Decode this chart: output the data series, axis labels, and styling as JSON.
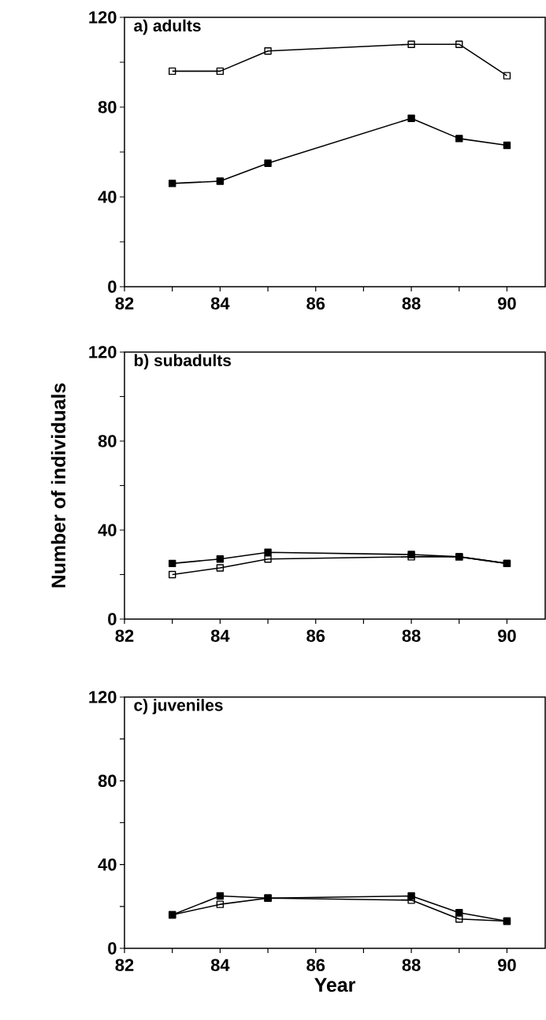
{
  "chart_data": [
    {
      "type": "line",
      "title": "a) adults",
      "x": [
        83,
        84,
        85,
        88,
        89,
        90
      ],
      "marker": "square",
      "line_style": "solid",
      "series": [
        {
          "color": "#000000",
          "values": [
            96,
            96,
            105,
            108,
            108,
            94
          ]
        },
        {
          "color": "#000000",
          "values": [
            46,
            47,
            55,
            75,
            66,
            63
          ]
        }
      ],
      "xlim": [
        82,
        90.8
      ],
      "ylim": [
        0,
        120
      ],
      "xticks": [
        82,
        {
          "value": 83,
          "label": null
        },
        84,
        {
          "value": 85,
          "label": null
        },
        86,
        {
          "value": 87,
          "label": null
        },
        88,
        {
          "value": 89,
          "label": null
        },
        90
      ],
      "yticks": [
        0,
        {
          "value": 20,
          "label": null
        },
        40,
        {
          "value": 60,
          "label": null
        },
        80,
        {
          "value": 100,
          "label": null
        },
        120
      ]
    },
    {
      "type": "line",
      "title": "b) subadults",
      "ylabel": "Number of individuals",
      "x": [
        83,
        84,
        85,
        88,
        89,
        90
      ],
      "marker": "square",
      "line_style": "solid",
      "series": [
        {
          "color": "#000000",
          "values": [
            20,
            23,
            27,
            28,
            28,
            25
          ]
        },
        {
          "color": "#000000",
          "values": [
            25,
            27,
            30,
            29,
            28,
            25
          ]
        }
      ],
      "xlim": [
        82,
        90.8
      ],
      "ylim": [
        0,
        120
      ],
      "xticks": [
        82,
        {
          "value": 83,
          "label": null
        },
        84,
        {
          "value": 85,
          "label": null
        },
        86,
        {
          "value": 87,
          "label": null
        },
        88,
        {
          "value": 89,
          "label": null
        },
        90
      ],
      "yticks": [
        0,
        {
          "value": 20,
          "label": null
        },
        40,
        {
          "value": 60,
          "label": null
        },
        80,
        {
          "value": 100,
          "label": null
        },
        120
      ]
    },
    {
      "type": "line",
      "title": "c) juveniles",
      "xlabel": "Year",
      "x": [
        83,
        84,
        85,
        88,
        89,
        90
      ],
      "marker": "square",
      "line_style": "solid",
      "series": [
        {
          "color": "#000000",
          "values": [
            16,
            21,
            24,
            23,
            14,
            13
          ]
        },
        {
          "color": "#000000",
          "values": [
            16,
            25,
            24,
            25,
            17,
            13
          ]
        }
      ],
      "xlim": [
        82,
        90.8
      ],
      "ylim": [
        0,
        120
      ],
      "xticks": [
        82,
        {
          "value": 83,
          "label": null
        },
        84,
        {
          "value": 85,
          "label": null
        },
        86,
        {
          "value": 87,
          "label": null
        },
        88,
        {
          "value": 89,
          "label": null
        },
        90
      ],
      "yticks": [
        0,
        {
          "value": 20,
          "label": null
        },
        40,
        {
          "value": 60,
          "label": null
        },
        80,
        {
          "value": 100,
          "label": null
        },
        120
      ]
    }
  ]
}
